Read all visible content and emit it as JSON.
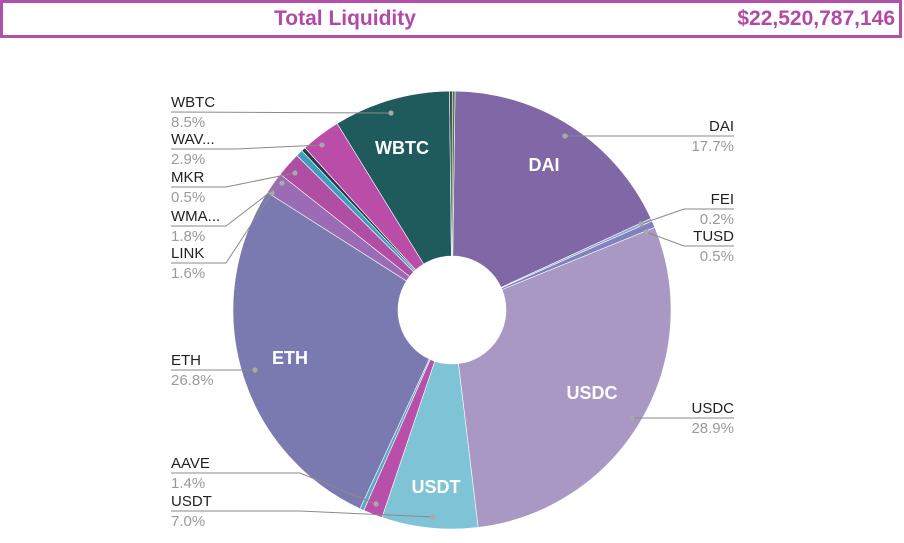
{
  "header": {
    "title": "Total Liquidity",
    "value": "$22,520,787,146"
  },
  "chart_data": {
    "type": "pie",
    "donut": true,
    "title": "",
    "slices": [
      {
        "label": "DAI",
        "value": 17.7,
        "pct": "17.7%",
        "color": "#8067a6",
        "inner_label": "DAI"
      },
      {
        "label": "FEI",
        "value": 0.2,
        "pct": "0.2%",
        "color": "#8ea5d6",
        "inner_label": ""
      },
      {
        "label": "TUSD",
        "value": 0.5,
        "pct": "0.5%",
        "color": "#7f82bd",
        "inner_label": ""
      },
      {
        "label": "USDC",
        "value": 28.9,
        "pct": "28.9%",
        "color": "#a898c3",
        "inner_label": "USDC"
      },
      {
        "label": "USDT",
        "value": 7.0,
        "pct": "7.0%",
        "color": "#7fc4d6",
        "inner_label": "USDT"
      },
      {
        "label": "AAVE",
        "value": 1.4,
        "pct": "1.4%",
        "color": "#b84fa8",
        "inner_label": ""
      },
      {
        "label": "",
        "value": 0.3,
        "pct": "",
        "color": "#5ba9c7",
        "inner_label": ""
      },
      {
        "label": "ETH",
        "value": 26.8,
        "pct": "26.8%",
        "color": "#7b7ab0",
        "inner_label": "ETH"
      },
      {
        "label": "LINK",
        "value": 1.6,
        "pct": "1.6%",
        "color": "#9c6bb5",
        "inner_label": ""
      },
      {
        "label": "WMA...",
        "value": 1.8,
        "pct": "1.8%",
        "color": "#b04ea4",
        "inner_label": ""
      },
      {
        "label": "MKR",
        "value": 0.5,
        "pct": "0.5%",
        "color": "#3e9fbc",
        "inner_label": ""
      },
      {
        "label": "",
        "value": 0.3,
        "pct": "",
        "color": "#2a3a4a",
        "inner_label": ""
      },
      {
        "label": "WAV...",
        "value": 2.9,
        "pct": "2.9%",
        "color": "#b94da7",
        "inner_label": ""
      },
      {
        "label": "WBTC",
        "value": 8.5,
        "pct": "8.5%",
        "color": "#1f5a5c",
        "inner_label": "WBTC"
      },
      {
        "label": "",
        "value": 0.2,
        "pct": "",
        "color": "#34444f",
        "inner_label": ""
      },
      {
        "label": "",
        "value": 0.2,
        "pct": "",
        "color": "#4f7a4a",
        "inner_label": ""
      }
    ]
  }
}
